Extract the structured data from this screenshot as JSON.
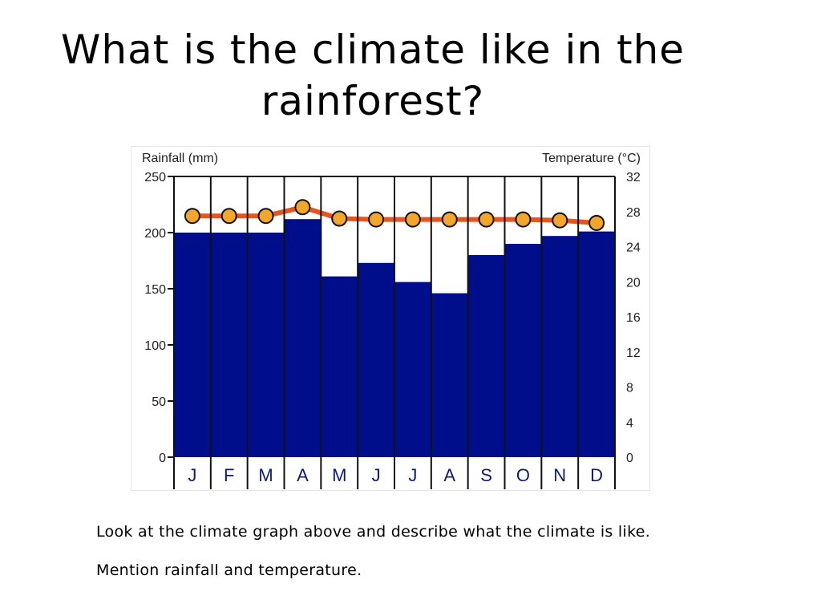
{
  "slide": {
    "title": "What is the climate like in the rainforest?",
    "caption_line1": "Look at the climate graph above and describe what the climate is like.",
    "caption_line2": "Mention rainfall and temperature."
  },
  "chart_data": {
    "type": "bar",
    "categories": [
      "J",
      "F",
      "M",
      "A",
      "M",
      "J",
      "J",
      "A",
      "S",
      "O",
      "N",
      "D"
    ],
    "series": [
      {
        "kind": "bar",
        "axis": "left",
        "color": "#000e8c",
        "values": [
          200,
          200,
          200,
          212,
          161,
          173,
          156,
          146,
          180,
          190,
          197,
          201
        ]
      },
      {
        "kind": "line",
        "axis": "right",
        "color": "#e8541a",
        "marker_color": "#f2a62a",
        "values": [
          27.5,
          27.5,
          27.5,
          28.5,
          27.2,
          27.1,
          27.1,
          27.1,
          27.1,
          27.1,
          27.0,
          26.7
        ]
      }
    ],
    "ylabel": "Rainfall (mm)",
    "y2label": "Temperature (°C)",
    "ylim": [
      0,
      250
    ],
    "y2lim": [
      0,
      32
    ],
    "yticks": [
      0,
      50,
      100,
      150,
      200,
      250
    ],
    "y2ticks": [
      0,
      4,
      8,
      12,
      16,
      20,
      24,
      28,
      32
    ],
    "grid": false,
    "legend": "none"
  }
}
